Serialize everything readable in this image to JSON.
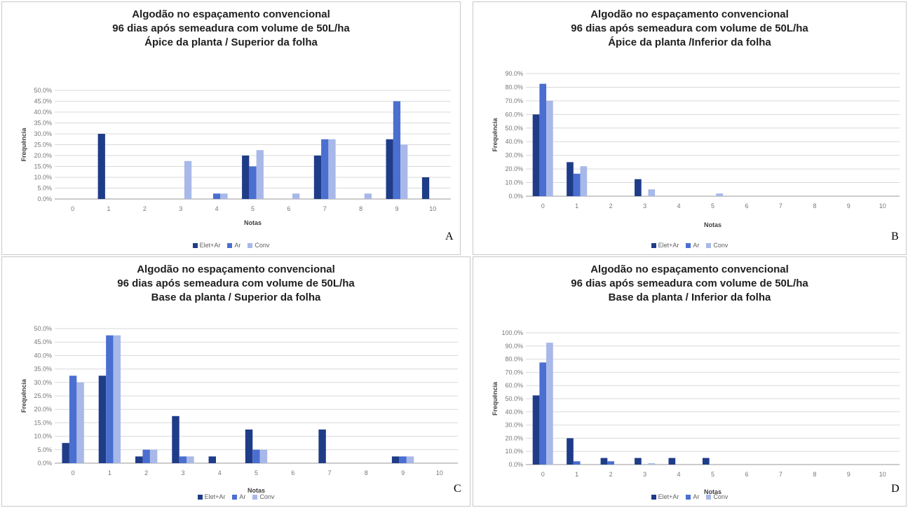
{
  "colors": [
    "#1f3c88",
    "#4a6fd0",
    "#a8b8e8"
  ],
  "chart_data": [
    {
      "type": "bar",
      "panel_label": "A",
      "title_lines": [
        "Algodão no espaçamento convencional",
        "96 dias após semeadura com volume de 50L/ha",
        "Ápice da planta / Superior da folha"
      ],
      "xlabel": "Notas",
      "ylabel": "Frequência",
      "categories": [
        "0",
        "1",
        "2",
        "3",
        "4",
        "5",
        "6",
        "7",
        "8",
        "9",
        "10"
      ],
      "ylim": [
        0,
        50
      ],
      "yticks": [
        "0.0%",
        "5.0%",
        "10.0%",
        "15.0%",
        "20.0%",
        "25.0%",
        "30.0%",
        "35.0%",
        "40.0%",
        "45.0%",
        "50.0%"
      ],
      "grid": true,
      "legend_position": "bottom",
      "series": [
        {
          "name": "Elet+Ar",
          "values": [
            0,
            30,
            0,
            0,
            0,
            20,
            0,
            20,
            0,
            27.5,
            10
          ]
        },
        {
          "name": "Ar",
          "values": [
            0,
            0,
            0,
            0,
            2.5,
            15,
            0,
            27.5,
            0,
            45,
            0
          ]
        },
        {
          "name": "Conv",
          "values": [
            0,
            0,
            0,
            17.5,
            2.5,
            22.5,
            2.5,
            27.5,
            2.5,
            25,
            0
          ]
        }
      ]
    },
    {
      "type": "bar",
      "panel_label": "B",
      "title_lines": [
        "Algodão no espaçamento convencional",
        "96 dias após semeadura com volume de 50L/ha",
        "Ápice da planta /Inferior da folha"
      ],
      "xlabel": "Notas",
      "ylabel": "Frequência",
      "categories": [
        "0",
        "1",
        "2",
        "3",
        "4",
        "5",
        "6",
        "7",
        "8",
        "9",
        "10"
      ],
      "ylim": [
        0,
        90
      ],
      "yticks": [
        "0.0%",
        "10.0%",
        "20.0%",
        "30.0%",
        "40.0%",
        "50.0%",
        "60.0%",
        "70.0%",
        "80.0%",
        "90.0%"
      ],
      "grid": true,
      "legend_position": "bottom",
      "series": [
        {
          "name": "Elet+Ar",
          "values": [
            60,
            25,
            0,
            12.5,
            0,
            0,
            0,
            0,
            0,
            0,
            0
          ]
        },
        {
          "name": "Ar",
          "values": [
            82.5,
            16.5,
            0,
            0,
            0,
            0,
            0,
            0,
            0,
            0,
            0
          ]
        },
        {
          "name": "Conv",
          "values": [
            70,
            22,
            0,
            5,
            0,
            2,
            0,
            0,
            0,
            0,
            0
          ]
        }
      ]
    },
    {
      "type": "bar",
      "panel_label": "C",
      "title_lines": [
        "Algodão no espaçamento convencional",
        "96 dias após semeadura com volume de 50L/ha",
        "Base da planta / Superior da folha"
      ],
      "xlabel": "Notas",
      "ylabel": "Frequência",
      "categories": [
        "0",
        "1",
        "2",
        "3",
        "4",
        "5",
        "6",
        "7",
        "8",
        "9",
        "10"
      ],
      "ylim": [
        0,
        50
      ],
      "yticks": [
        "0.0%",
        "5.0%",
        "10.0%",
        "15.0%",
        "20.0%",
        "25.0%",
        "30.0%",
        "35.0%",
        "40.0%",
        "45.0%",
        "50.0%"
      ],
      "grid": true,
      "legend_position": "bottom",
      "series": [
        {
          "name": "Elet+Ar",
          "values": [
            7.5,
            32.5,
            2.5,
            17.5,
            2.5,
            12.5,
            0,
            12.5,
            0,
            2.5,
            0
          ]
        },
        {
          "name": "Ar",
          "values": [
            32.5,
            47.5,
            5,
            2.5,
            0,
            5,
            0,
            0,
            0,
            2.5,
            0
          ]
        },
        {
          "name": "Conv",
          "values": [
            30,
            47.5,
            5,
            2.5,
            0,
            5,
            0,
            0,
            0,
            2.5,
            0
          ]
        }
      ]
    },
    {
      "type": "bar",
      "panel_label": "D",
      "title_lines": [
        "Algodão no espaçamento convencional",
        "96 dias após semeadura com volume de 50L/ha",
        "Base da planta / Inferior da folha"
      ],
      "xlabel": "Notas",
      "ylabel": "Frequência",
      "categories": [
        "0",
        "1",
        "2",
        "3",
        "4",
        "5",
        "6",
        "7",
        "8",
        "9",
        "10"
      ],
      "ylim": [
        0,
        100
      ],
      "yticks": [
        "0.0%",
        "10.0%",
        "20.0%",
        "30.0%",
        "40.0%",
        "50.0%",
        "60.0%",
        "70.0%",
        "80.0%",
        "90.0%",
        "100.0%"
      ],
      "grid": true,
      "legend_position": "bottom",
      "series": [
        {
          "name": "Elet+Ar",
          "values": [
            52.5,
            20,
            5,
            5,
            5,
            5,
            0,
            0,
            0,
            0,
            0
          ]
        },
        {
          "name": "Ar",
          "values": [
            77.5,
            2.5,
            2.5,
            0,
            0,
            0,
            0,
            0,
            0,
            0,
            0
          ]
        },
        {
          "name": "Conv",
          "values": [
            92.5,
            0,
            0,
            1,
            0,
            0,
            0,
            0,
            0,
            0,
            0
          ]
        }
      ]
    }
  ]
}
